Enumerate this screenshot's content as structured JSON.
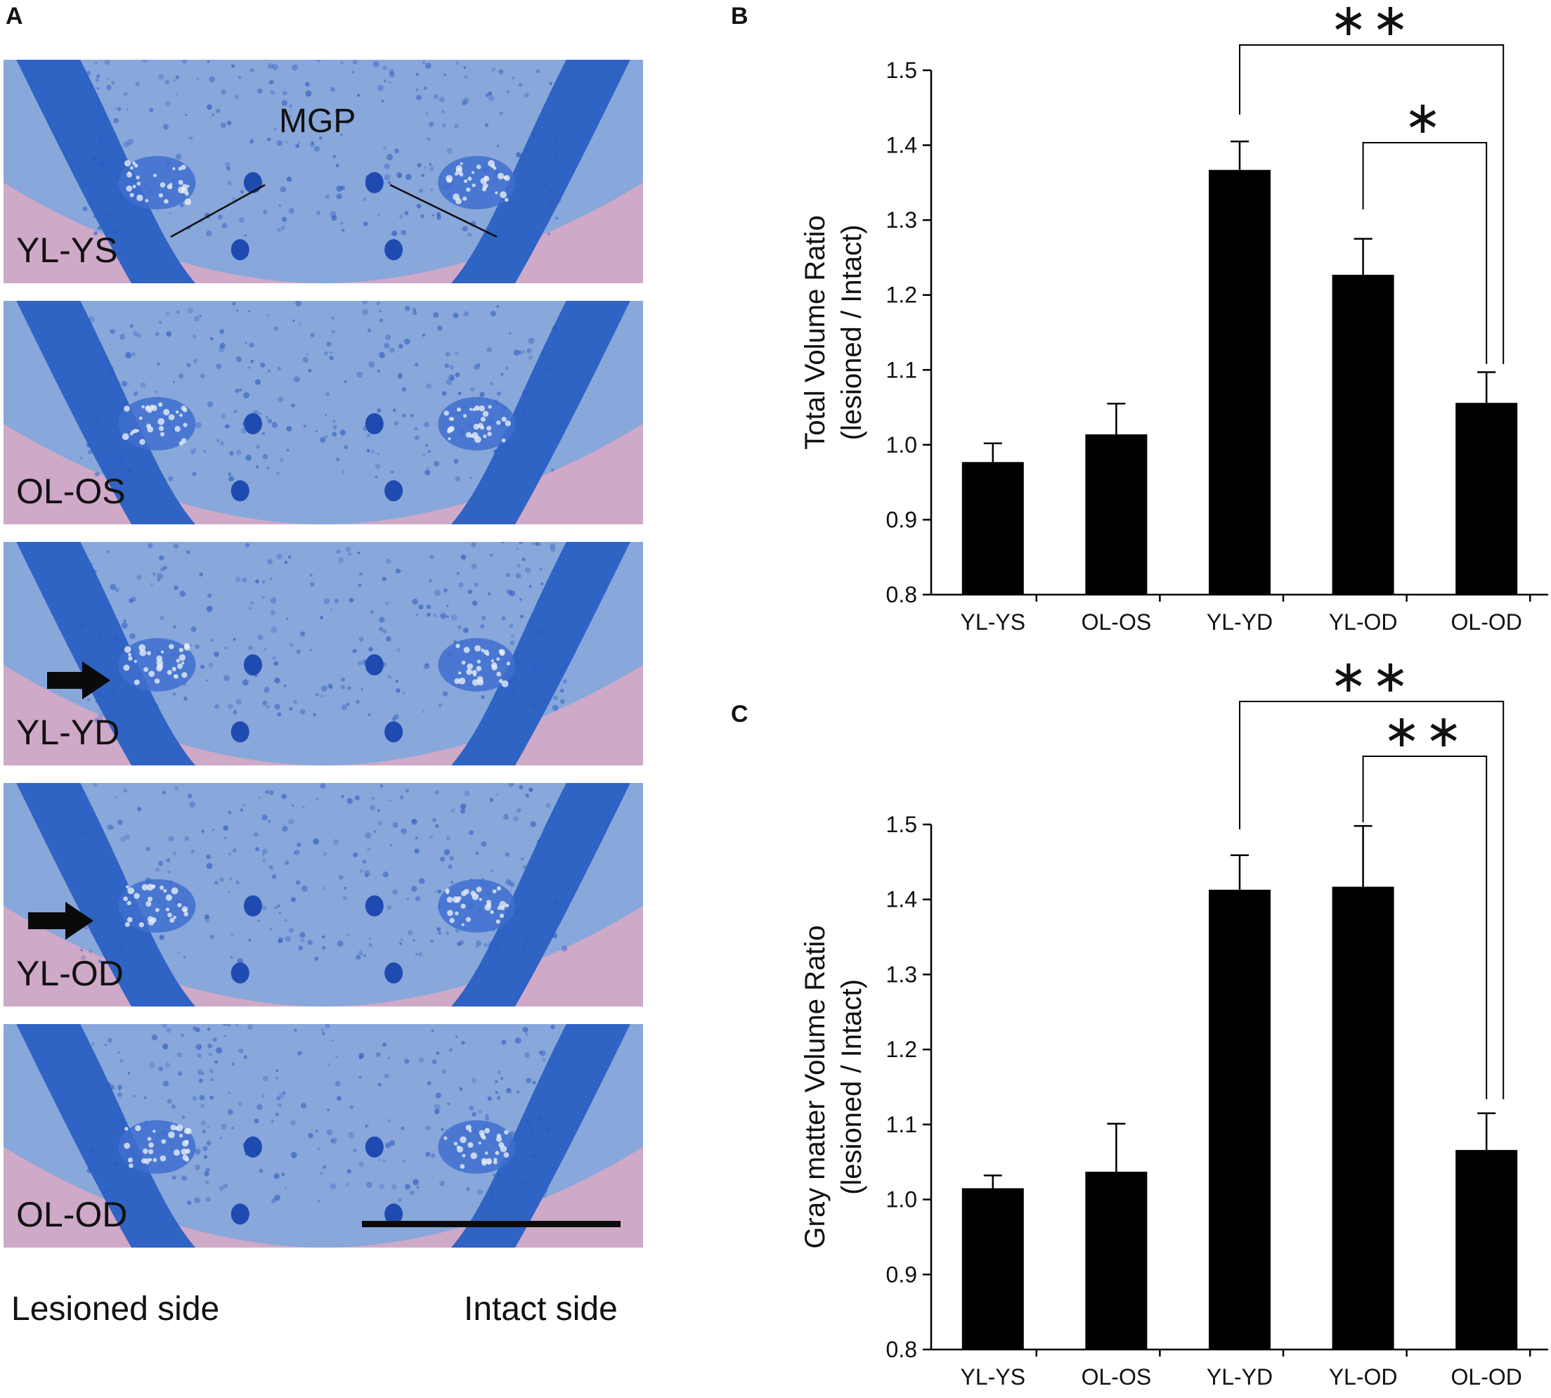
{
  "panel_a": {
    "letter": "A",
    "mgp_label": "MGP",
    "images": [
      {
        "label": "YL-YS",
        "arrow": false
      },
      {
        "label": "OL-OS",
        "arrow": false
      },
      {
        "label": "YL-YD",
        "arrow": true
      },
      {
        "label": "YL-OD",
        "arrow": true
      },
      {
        "label": "OL-OD",
        "arrow": false
      }
    ],
    "lesioned_side": "Lesioned side",
    "intact_side": "Intact side",
    "colors": {
      "stain": "#2f63c4",
      "tissue": "#7fa6dc",
      "background": "#cfa9c8"
    }
  },
  "chart_data": [
    {
      "panel": "B",
      "type": "bar",
      "categories": [
        "YL-YS",
        "OL-OS",
        "YL-YD",
        "YL-OD",
        "OL-OD"
      ],
      "values": [
        0.977,
        1.014,
        1.367,
        1.227,
        1.056
      ],
      "errors": [
        0.025,
        0.041,
        0.038,
        0.048,
        0.041
      ],
      "ylabel": "Total Volume Ratio",
      "ylabel2": "(lesioned / Intact)",
      "ylim": [
        0.8,
        1.5
      ],
      "yticks": [
        "0.8",
        "0.9",
        "1.0",
        "1.1",
        "1.2",
        "1.3",
        "1.4",
        "1.5"
      ],
      "significance": [
        {
          "from": "YL-YD",
          "to": "OL-OD",
          "label": "**"
        },
        {
          "from": "YL-OD",
          "to": "OL-OD",
          "label": "*"
        }
      ],
      "bar_color": "#000000"
    },
    {
      "panel": "C",
      "type": "bar",
      "categories": [
        "YL-YS",
        "OL-OS",
        "YL-YD",
        "YL-OD",
        "OL-OD"
      ],
      "values": [
        1.015,
        1.037,
        1.413,
        1.417,
        1.066
      ],
      "errors": [
        0.017,
        0.064,
        0.046,
        0.081,
        0.049
      ],
      "ylabel": "Gray matter Volume Ratio",
      "ylabel2": "(lesioned / Intact)",
      "ylim": [
        0.8,
        1.5
      ],
      "yticks": [
        "0.8",
        "0.9",
        "1.0",
        "1.1",
        "1.2",
        "1.3",
        "1.4",
        "1.5"
      ],
      "significance": [
        {
          "from": "YL-YD",
          "to": "OL-OD",
          "label": "**"
        },
        {
          "from": "YL-OD",
          "to": "OL-OD",
          "label": "**"
        }
      ],
      "bar_color": "#000000"
    }
  ]
}
